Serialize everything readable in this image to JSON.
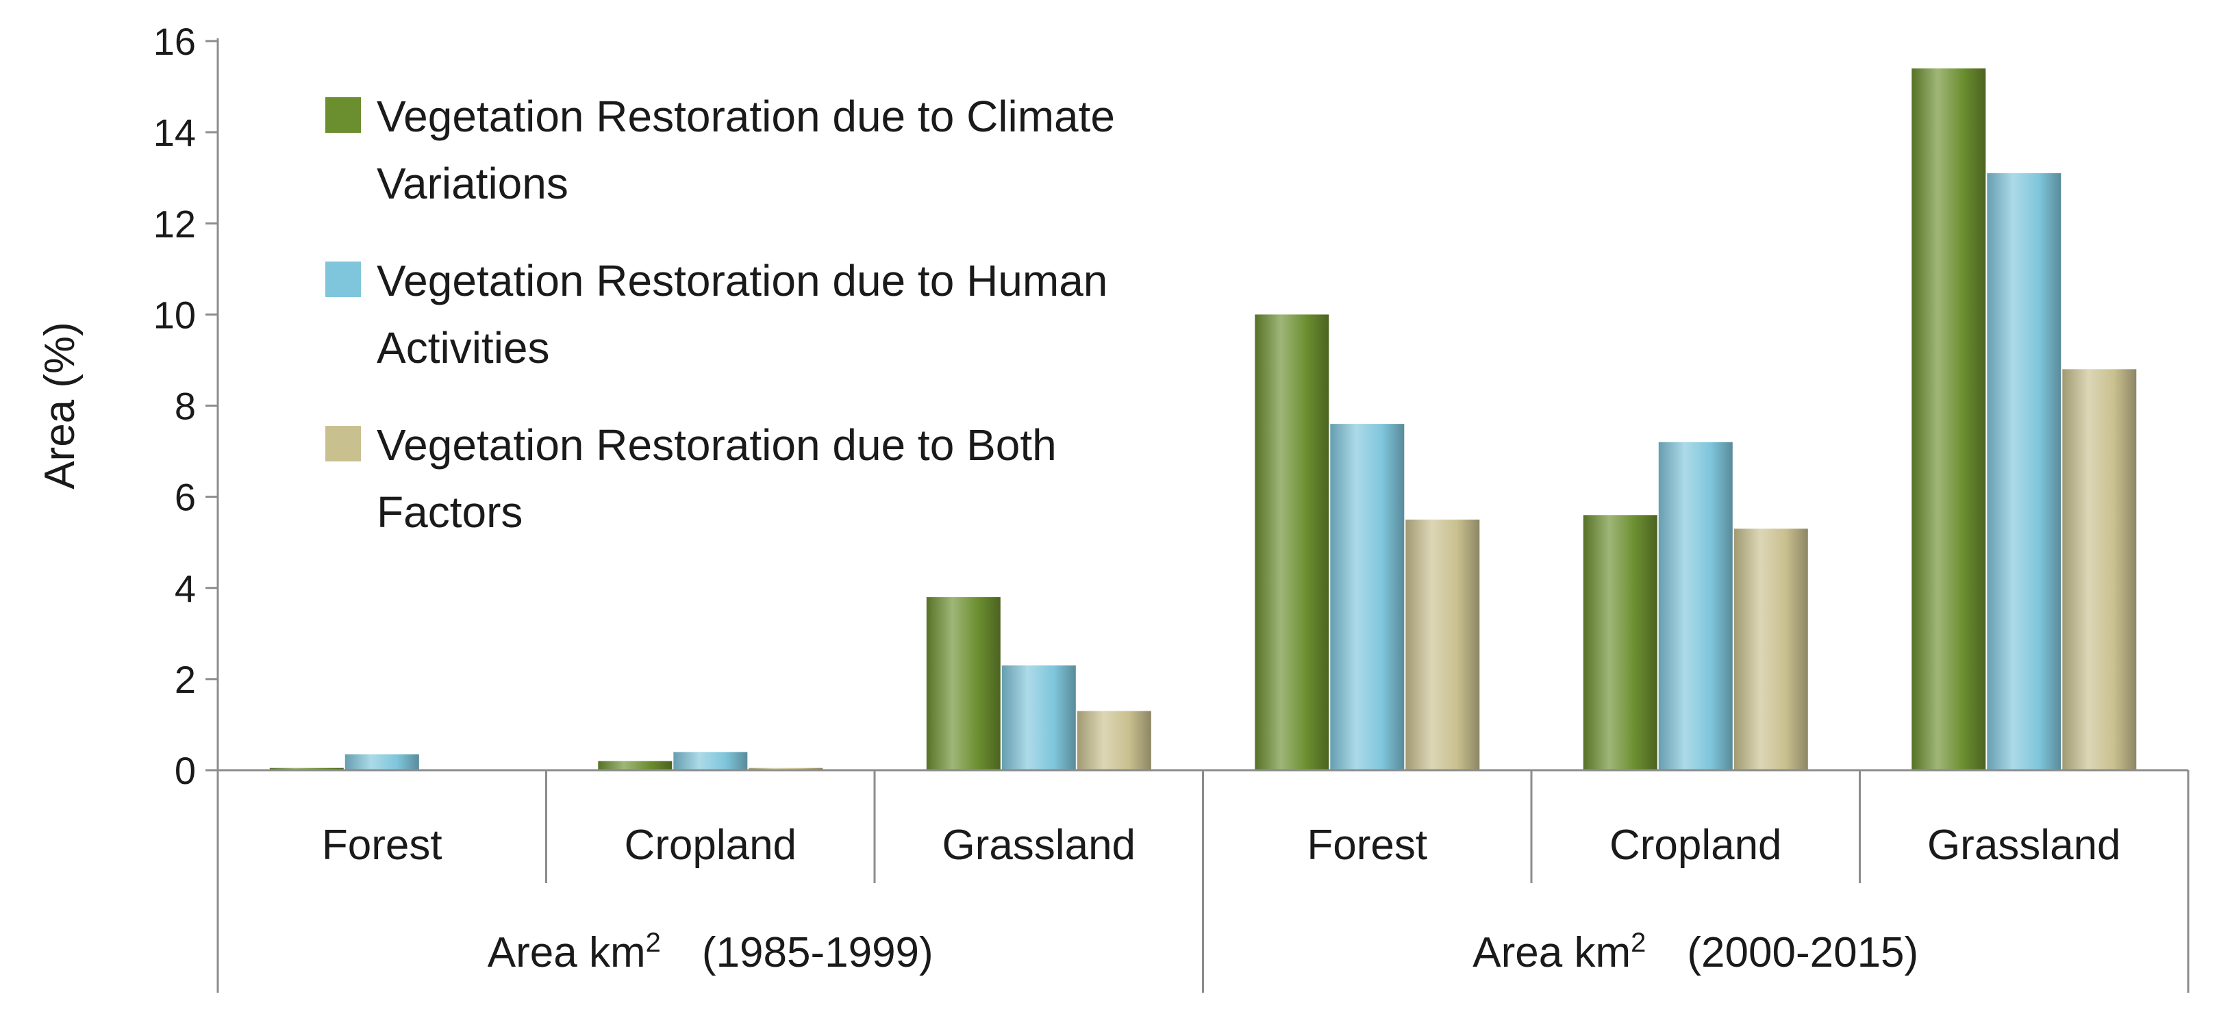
{
  "chart_data": {
    "type": "bar",
    "ylabel": "Area (%)",
    "ylim": [
      0,
      16
    ],
    "yticks": [
      0,
      2,
      4,
      6,
      8,
      10,
      12,
      14,
      16
    ],
    "grid": false,
    "legend_position": "top-left",
    "categories": [
      "Forest",
      "Cropland",
      "Grassland",
      "Forest",
      "Cropland",
      "Grassland"
    ],
    "groups": [
      {
        "base": "Area km",
        "sup": "2",
        "period": "(1985-1999)",
        "categories": [
          "Forest",
          "Cropland",
          "Grassland"
        ]
      },
      {
        "base": "Area km",
        "sup": "2",
        "period": "(2000-2015)",
        "categories": [
          "Forest",
          "Cropland",
          "Grassland"
        ]
      }
    ],
    "series": [
      {
        "legend_lines": [
          "Vegetation Restoration due to Climate",
          "Variations"
        ],
        "color": "#6b8e2f",
        "values": [
          0.05,
          0.2,
          3.8,
          10.0,
          5.6,
          15.4
        ]
      },
      {
        "legend_lines": [
          "Vegetation Restoration due to Human",
          "Activities"
        ],
        "color": "#7fc6dc",
        "values": [
          0.35,
          0.4,
          2.3,
          7.6,
          7.2,
          13.1
        ]
      },
      {
        "legend_lines": [
          "Vegetation Restoration due to Both",
          "Factors"
        ],
        "color": "#c9c08f",
        "values": [
          0.02,
          0.05,
          1.3,
          5.5,
          5.3,
          8.8
        ]
      }
    ]
  }
}
